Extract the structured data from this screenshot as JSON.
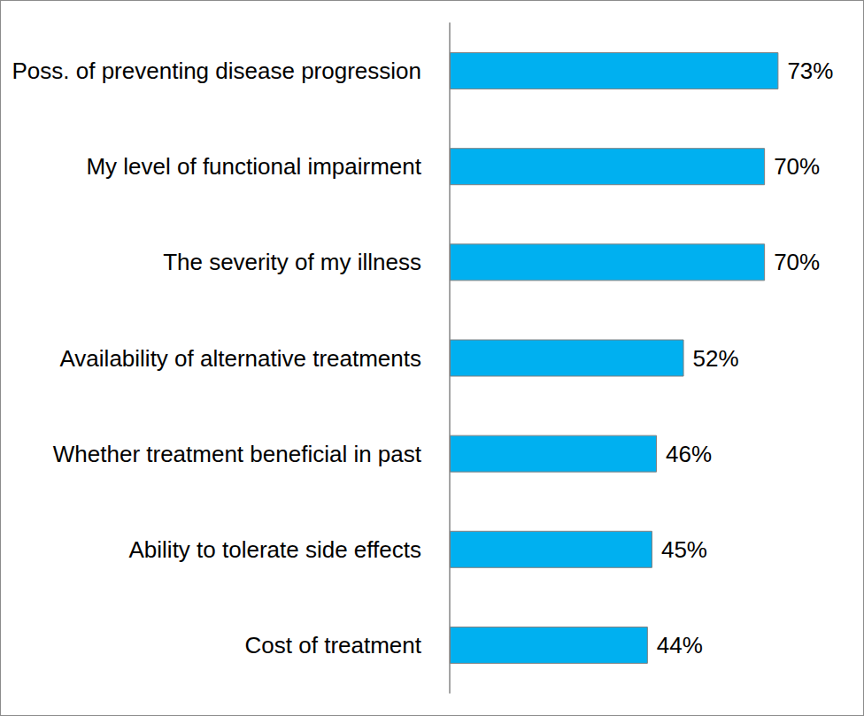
{
  "chart_data": {
    "type": "bar",
    "orientation": "horizontal",
    "categories": [
      "Poss. of preventing disease progression",
      "My level of functional impairment",
      "The severity of my illness",
      "Availability of alternative treatments",
      "Whether treatment beneficial in past",
      "Ability to tolerate side effects",
      "Cost of treatment"
    ],
    "values": [
      73,
      70,
      70,
      52,
      46,
      45,
      44
    ],
    "value_labels": [
      "73%",
      "70%",
      "70%",
      "52%",
      "46%",
      "45%",
      "44%"
    ],
    "color": "#00b0f0",
    "xlim": [
      0,
      80
    ],
    "grid": false,
    "data_labels": true,
    "tick_labels": "y"
  }
}
